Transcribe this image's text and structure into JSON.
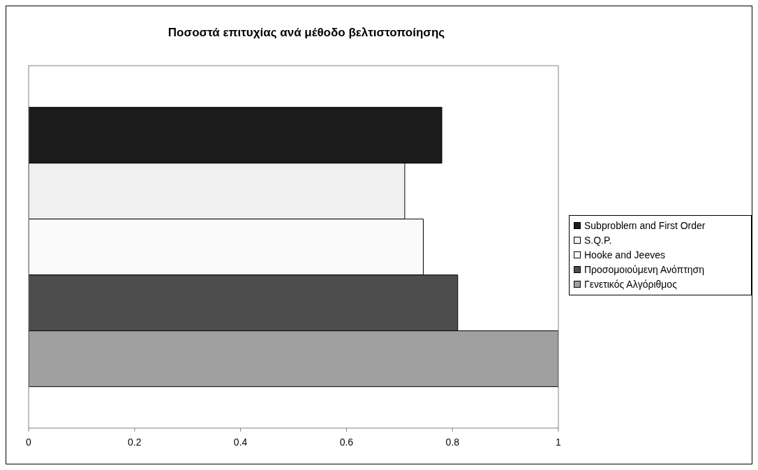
{
  "chart_data": {
    "type": "bar",
    "orientation": "horizontal",
    "title": "Ποσοστά επιτυχίας ανά μέθοδο βελτιστοποίησης",
    "categories": [
      null
    ],
    "series": [
      {
        "name": "Subproblem and First Order",
        "color": "#1c1c1c",
        "values": [
          0.78
        ]
      },
      {
        "name": "S.Q.P.",
        "color": "#f0f0f0",
        "values": [
          0.71
        ]
      },
      {
        "name": "Hooke and Jeeves",
        "color": "#fafafa",
        "values": [
          0.745
        ]
      },
      {
        "name": "Προσομοιούμενη Ανόπτηση",
        "color": "#4d4d4d",
        "values": [
          0.81
        ]
      },
      {
        "name": "Γενετικός Αλγόριθμος",
        "color": "#a0a0a0",
        "values": [
          1
        ]
      }
    ],
    "xlim": [
      0,
      1
    ],
    "xticks": [
      0,
      0.2,
      0.4,
      0.6,
      0.8,
      1
    ],
    "grid": false,
    "legend": "right"
  }
}
